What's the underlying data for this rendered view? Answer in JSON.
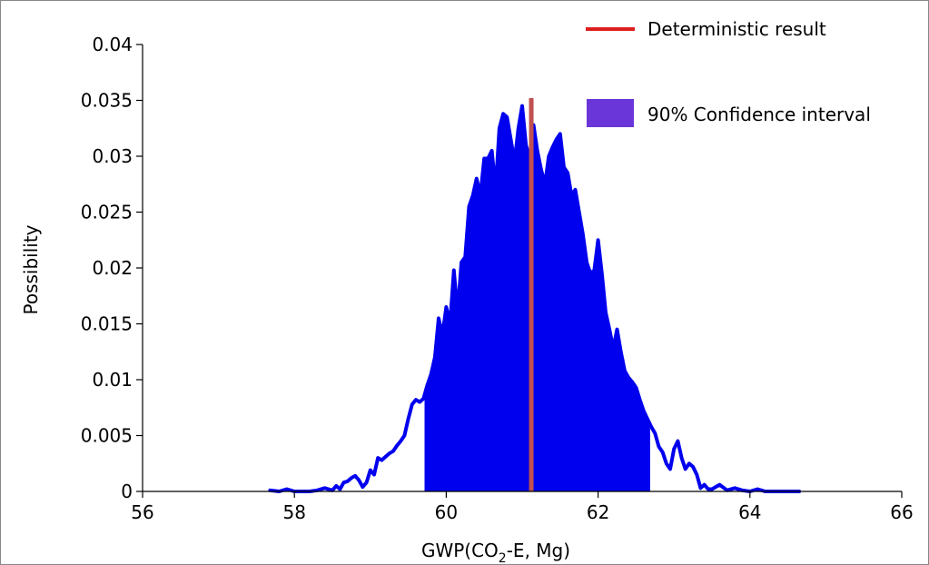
{
  "chart_data": {
    "type": "area",
    "title": "",
    "xlabel": "GWP(CO",
    "xlabel_subscript": "2",
    "xlabel_suffix": "-E, Mg)",
    "ylabel": "Possibility",
    "xlim": [
      56,
      66
    ],
    "ylim": [
      0,
      0.04
    ],
    "x_ticks": [
      56,
      58,
      60,
      62,
      64,
      66
    ],
    "x_tick_labels": [
      "56",
      "58",
      "60",
      "62",
      "64",
      "66"
    ],
    "y_ticks": [
      0,
      0.005,
      0.01,
      0.015,
      0.02,
      0.025,
      0.03,
      0.035,
      0.04
    ],
    "y_tick_labels": [
      "0",
      "0.005",
      "0.01",
      "0.015",
      "0.02",
      "0.025",
      "0.03",
      "0.035",
      "0.04"
    ],
    "grid": false,
    "legend": {
      "placement": "top-right",
      "entries": [
        {
          "label": "Deterministic result",
          "kind": "line",
          "color": "#dd1f1f"
        },
        {
          "label": "90% Confidence interval",
          "kind": "patch",
          "color": "#6a35d9"
        }
      ]
    },
    "series": [
      {
        "kind": "density",
        "color": "#0000ee",
        "x": [
          57.68,
          57.8,
          57.9,
          58.0,
          58.1,
          58.2,
          58.3,
          58.4,
          58.5,
          58.55,
          58.6,
          58.65,
          58.7,
          58.75,
          58.8,
          58.85,
          58.9,
          58.95,
          59.0,
          59.05,
          59.1,
          59.15,
          59.2,
          59.25,
          59.3,
          59.35,
          59.4,
          59.45,
          59.5,
          59.55,
          59.6,
          59.65,
          59.7,
          59.75,
          59.8,
          59.85,
          59.9,
          59.95,
          60.0,
          60.05,
          60.1,
          60.15,
          60.2,
          60.25,
          60.3,
          60.35,
          60.4,
          60.45,
          60.5,
          60.55,
          60.6,
          60.65,
          60.7,
          60.75,
          60.8,
          60.85,
          60.9,
          60.95,
          61.0,
          61.05,
          61.1,
          61.15,
          61.2,
          61.25,
          61.3,
          61.35,
          61.4,
          61.45,
          61.5,
          61.55,
          61.6,
          61.65,
          61.7,
          61.75,
          61.8,
          61.85,
          61.9,
          61.95,
          62.0,
          62.05,
          62.1,
          62.15,
          62.2,
          62.25,
          62.3,
          62.35,
          62.4,
          62.45,
          62.5,
          62.55,
          62.6,
          62.65,
          62.7,
          62.75,
          62.8,
          62.85,
          62.9,
          62.95,
          63.0,
          63.05,
          63.1,
          63.15,
          63.2,
          63.25,
          63.3,
          63.35,
          63.4,
          63.45,
          63.5,
          63.6,
          63.7,
          63.8,
          63.9,
          64.0,
          64.1,
          64.2,
          64.3,
          64.4,
          64.5,
          64.65
        ],
        "y": [
          0.0001,
          0.0,
          0.0002,
          0.0,
          0.0,
          0.0,
          0.0001,
          0.0003,
          0.0001,
          0.0005,
          0.0002,
          0.0008,
          0.0009,
          0.0012,
          0.0014,
          0.001,
          0.0004,
          0.0008,
          0.0019,
          0.0015,
          0.003,
          0.0028,
          0.0031,
          0.0034,
          0.0036,
          0.0041,
          0.0045,
          0.005,
          0.0065,
          0.0078,
          0.0082,
          0.008,
          0.0083,
          0.0095,
          0.0105,
          0.012,
          0.0155,
          0.014,
          0.0165,
          0.015,
          0.0198,
          0.016,
          0.0205,
          0.021,
          0.0255,
          0.0265,
          0.028,
          0.0265,
          0.0298,
          0.0298,
          0.0305,
          0.027,
          0.0325,
          0.0338,
          0.0335,
          0.0315,
          0.0295,
          0.0325,
          0.0345,
          0.031,
          0.0298,
          0.0328,
          0.0305,
          0.0288,
          0.0275,
          0.03,
          0.0308,
          0.0315,
          0.032,
          0.029,
          0.0285,
          0.0265,
          0.027,
          0.025,
          0.023,
          0.0205,
          0.0195,
          0.0198,
          0.0225,
          0.0195,
          0.016,
          0.0145,
          0.0128,
          0.0145,
          0.0125,
          0.0108,
          0.0102,
          0.0098,
          0.0093,
          0.0082,
          0.0072,
          0.0065,
          0.0058,
          0.0052,
          0.004,
          0.0035,
          0.0025,
          0.002,
          0.0038,
          0.0045,
          0.003,
          0.002,
          0.0025,
          0.0022,
          0.0015,
          0.0003,
          0.0006,
          0.0002,
          0.0002,
          0.0006,
          0.0001,
          0.0003,
          0.0001,
          0.0,
          0.0002,
          0.0,
          0.0,
          0.0,
          0.0,
          0.0
        ]
      }
    ],
    "confidence_interval": {
      "lower": 59.72,
      "upper": 62.68,
      "color": "#0000ee"
    },
    "deterministic_result": {
      "x": 61.12,
      "y": 0.0352,
      "color": "#c05050"
    }
  }
}
